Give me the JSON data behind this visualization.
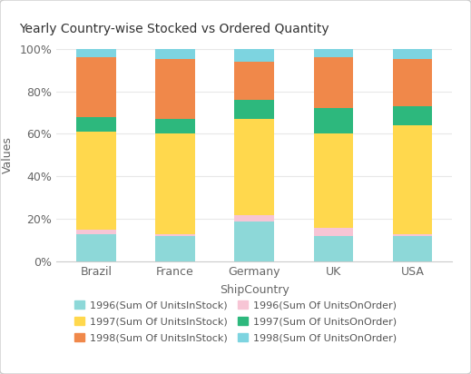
{
  "title": "Yearly Country-wise Stocked vs Ordered Quantity",
  "categories": [
    "Brazil",
    "France",
    "Germany",
    "UK",
    "USA"
  ],
  "xlabel": "ShipCountry",
  "ylabel": "Values",
  "background_color": "#f0f0f0",
  "plot_bg_color": "#ffffff",
  "series": [
    {
      "label": "1996(Sum Of UnitsInStock)",
      "color": "#8dd8d8",
      "values": [
        13,
        12,
        19,
        12,
        12
      ]
    },
    {
      "label": "1996(Sum Of UnitsOnOrder)",
      "color": "#f7c5d5",
      "values": [
        2,
        1,
        3,
        4,
        1
      ]
    },
    {
      "label": "1997(Sum Of UnitsInStock)",
      "color": "#ffd84d",
      "values": [
        46,
        47,
        45,
        44,
        51
      ]
    },
    {
      "label": "1997(Sum Of UnitsOnOrder)",
      "color": "#2db87d",
      "values": [
        7,
        7,
        9,
        12,
        9
      ]
    },
    {
      "label": "1998(Sum Of UnitsInStock)",
      "color": "#f0884a",
      "values": [
        28,
        28,
        18,
        24,
        22
      ]
    },
    {
      "label": "1998(Sum Of UnitsOnOrder)",
      "color": "#7dd4e0",
      "values": [
        4,
        5,
        6,
        4,
        5
      ]
    }
  ],
  "ylim": [
    0,
    100
  ],
  "yticks": [
    0,
    20,
    40,
    60,
    80,
    100
  ],
  "ytick_labels": [
    "0%",
    "20%",
    "40%",
    "60%",
    "80%",
    "100%"
  ],
  "grid_color": "#e8e8e8",
  "bar_width": 0.5,
  "title_fontsize": 10,
  "axis_fontsize": 9,
  "legend_fontsize": 8
}
